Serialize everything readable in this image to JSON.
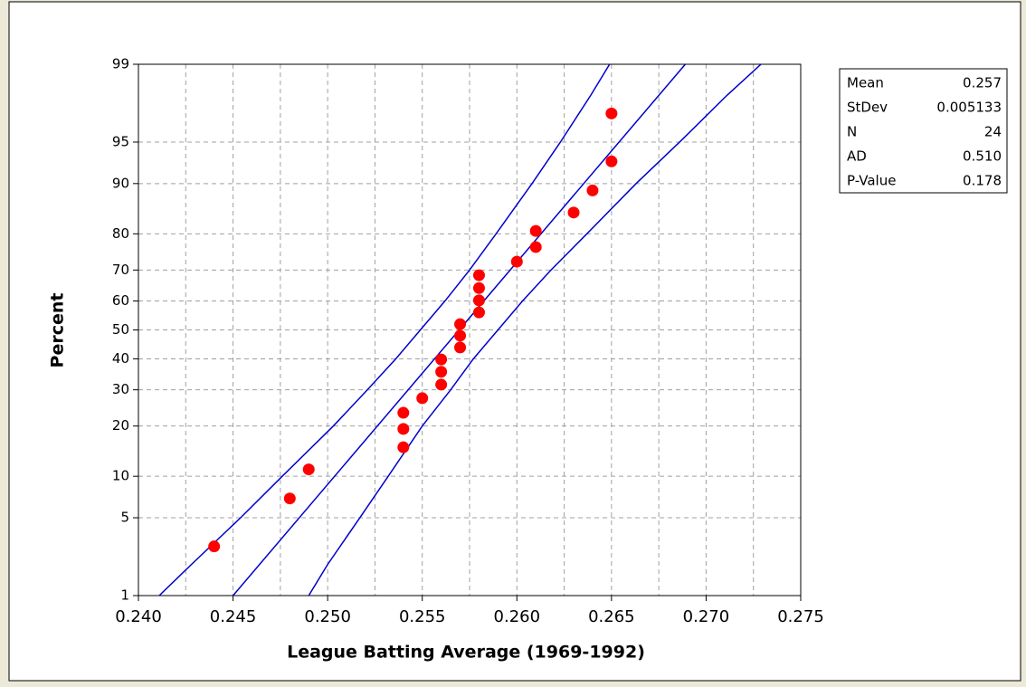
{
  "chart_data": {
    "type": "probability-plot",
    "xlabel": "League Batting Average (1969-1992)",
    "ylabel": "Percent",
    "xlim": [
      0.24,
      0.275
    ],
    "ylim": [
      1,
      99
    ],
    "yscale": "probability",
    "xticks": [
      {
        "value": 0.24,
        "label": "0.240"
      },
      {
        "value": 0.245,
        "label": "0.245"
      },
      {
        "value": 0.25,
        "label": "0.250"
      },
      {
        "value": 0.255,
        "label": "0.255"
      },
      {
        "value": 0.26,
        "label": "0.260"
      },
      {
        "value": 0.265,
        "label": "0.265"
      },
      {
        "value": 0.27,
        "label": "0.270"
      },
      {
        "value": 0.275,
        "label": "0.275"
      }
    ],
    "xgrid": [
      0.2425,
      0.245,
      0.2475,
      0.25,
      0.2525,
      0.255,
      0.2575,
      0.26,
      0.2625,
      0.265,
      0.2675,
      0.27,
      0.2725
    ],
    "yticks": [
      1,
      5,
      10,
      20,
      30,
      40,
      50,
      60,
      70,
      80,
      90,
      95,
      99
    ],
    "grid": true,
    "points": {
      "name": "data",
      "color": "#ff0000",
      "x": [
        0.244,
        0.248,
        0.249,
        0.254,
        0.254,
        0.254,
        0.255,
        0.256,
        0.256,
        0.256,
        0.257,
        0.257,
        0.257,
        0.258,
        0.258,
        0.258,
        0.258,
        0.26,
        0.261,
        0.261,
        0.263,
        0.264,
        0.265,
        0.265
      ],
      "values": [
        2.9,
        7.0,
        11.1,
        15.2,
        19.3,
        23.4,
        27.5,
        31.6,
        35.7,
        39.8,
        43.9,
        48.0,
        52.0,
        56.1,
        60.2,
        64.3,
        68.4,
        72.5,
        76.6,
        80.7,
        84.8,
        88.9,
        93.0,
        97.1
      ]
    },
    "lines": [
      {
        "name": "fit",
        "color": "#0000cc",
        "x": [
          0.245,
          0.2689
        ],
        "values": [
          1,
          99
        ]
      },
      {
        "name": "lower",
        "color": "#0000cc",
        "x": [
          0.2411,
          0.2428,
          0.2454,
          0.2476,
          0.2503,
          0.2521,
          0.2536,
          0.2549,
          0.2562,
          0.2575,
          0.2589,
          0.2608,
          0.2623,
          0.2639,
          0.2649
        ],
        "values": [
          1,
          2,
          5,
          10,
          20,
          30,
          40,
          50,
          60,
          70,
          80,
          90,
          95,
          98,
          99
        ]
      },
      {
        "name": "upper",
        "color": "#0000cc",
        "x": [
          0.249,
          0.25,
          0.2517,
          0.2532,
          0.255,
          0.2565,
          0.2577,
          0.259,
          0.2603,
          0.2618,
          0.2637,
          0.2663,
          0.2686,
          0.2711,
          0.2729
        ],
        "values": [
          1,
          2,
          5,
          10,
          20,
          30,
          40,
          50,
          60,
          70,
          80,
          90,
          95,
          98,
          99
        ]
      }
    ],
    "stats": [
      {
        "label": "Mean",
        "value": "0.257"
      },
      {
        "label": "StDev",
        "value": "0.005133"
      },
      {
        "label": "N",
        "value": "24"
      },
      {
        "label": "AD",
        "value": "0.510"
      },
      {
        "label": "P-Value",
        "value": "0.178"
      }
    ]
  }
}
